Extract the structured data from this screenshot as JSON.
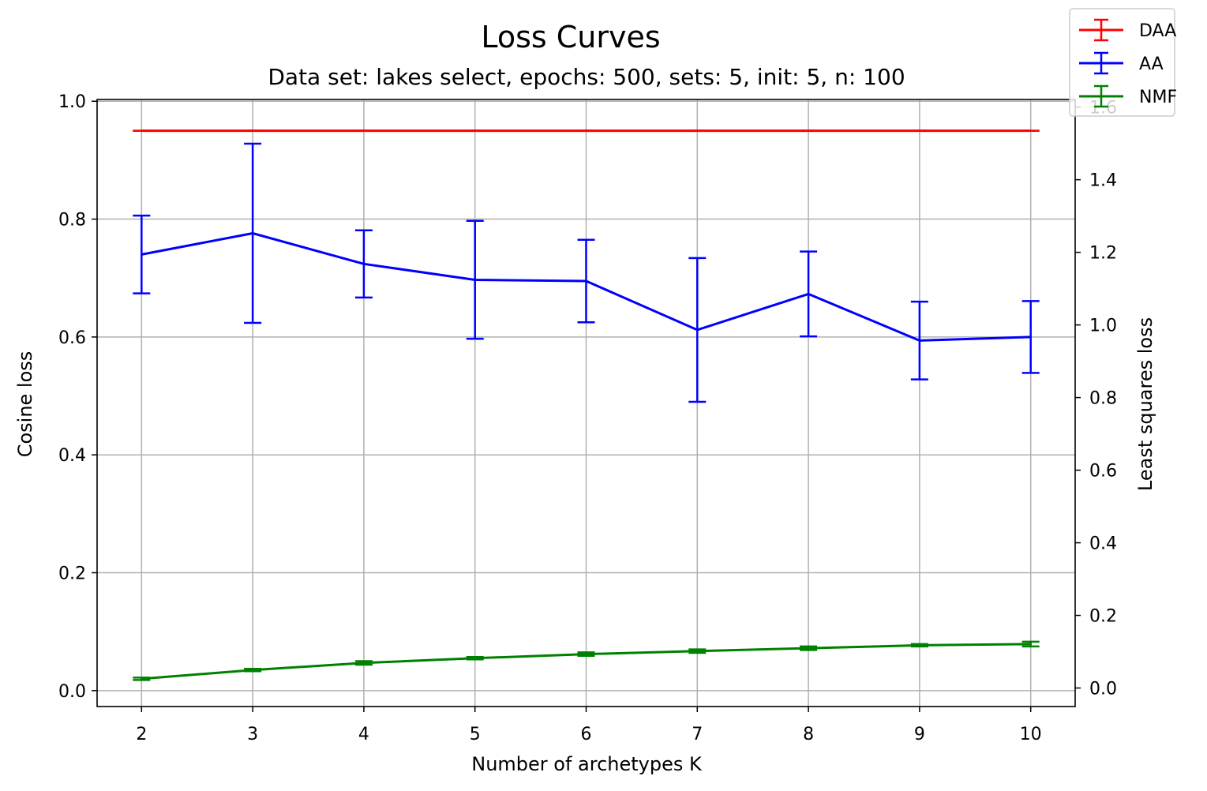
{
  "chart_data": {
    "type": "line",
    "title": "Loss Curves",
    "subtitle": "Data set:  lakes select, epochs: 500, sets: 5, init: 5, n: 100",
    "xlabel": "Number of archetypes K",
    "ylabel_left": "Cosine loss",
    "ylabel_right": "Least squares loss",
    "x": [
      2,
      3,
      4,
      5,
      6,
      7,
      8,
      9,
      10
    ],
    "x_ticks": [
      "2",
      "3",
      "4",
      "5",
      "6",
      "7",
      "8",
      "9",
      "10"
    ],
    "xlim": [
      1.6,
      10.4
    ],
    "ylim_left": [
      -0.027,
      1.003
    ],
    "ylim_right": [
      -0.051,
      1.621
    ],
    "y_ticks_left": [
      "0.0",
      "0.2",
      "0.4",
      "0.6",
      "0.8",
      "1.0"
    ],
    "y_ticks_right": [
      "0.0",
      "0.2",
      "0.4",
      "0.6",
      "0.8",
      "1.0",
      "1.2",
      "1.4",
      "1.6"
    ],
    "grid": true,
    "legend_position": "top-right",
    "series": [
      {
        "name": "DAA",
        "color": "#ff0000",
        "axis": "left",
        "values": [
          0.95,
          0.95,
          0.95,
          0.95,
          0.95,
          0.95,
          0.95,
          0.95,
          0.95
        ],
        "err": [
          0,
          0,
          0,
          0,
          0,
          0,
          0,
          0,
          0
        ]
      },
      {
        "name": "AA",
        "color": "#0000ff",
        "axis": "left",
        "values": [
          0.74,
          0.776,
          0.724,
          0.697,
          0.695,
          0.612,
          0.673,
          0.594,
          0.6
        ],
        "err": [
          0.066,
          0.152,
          0.057,
          0.1,
          0.07,
          0.122,
          0.072,
          0.066,
          0.061
        ]
      },
      {
        "name": "NMF",
        "color": "#008000",
        "axis": "left",
        "values": [
          0.02,
          0.035,
          0.047,
          0.055,
          0.062,
          0.067,
          0.072,
          0.077,
          0.079
        ],
        "err": [
          0.002,
          0.002,
          0.003,
          0.002,
          0.003,
          0.003,
          0.003,
          0.002,
          0.004
        ]
      }
    ]
  }
}
